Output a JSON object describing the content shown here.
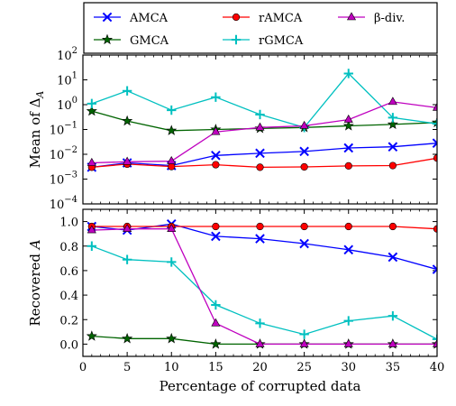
{
  "chart_data": [
    {
      "type": "line",
      "ylabel": "Mean of Δ",
      "ylabel_sub": "A",
      "yscale": "log",
      "ylim": [
        0.0001,
        100
      ],
      "yticks": [
        {
          "value": 0.0001,
          "base": "10",
          "exp": "−4"
        },
        {
          "value": 0.001,
          "base": "10",
          "exp": "−3"
        },
        {
          "value": 0.01,
          "base": "10",
          "exp": "−2"
        },
        {
          "value": 0.1,
          "base": "10",
          "exp": "−1"
        },
        {
          "value": 1,
          "base": "10",
          "exp": "0"
        },
        {
          "value": 10,
          "base": "10",
          "exp": "1"
        },
        {
          "value": 100,
          "base": "10",
          "exp": "2"
        }
      ],
      "xlim": [
        0,
        40
      ],
      "grid": false,
      "x": [
        1,
        5,
        10,
        15,
        20,
        25,
        30,
        35,
        40
      ],
      "series": [
        {
          "name": "AMCA",
          "color": "#0000ff",
          "marker": "x",
          "values": [
            0.003,
            0.0045,
            0.0035,
            0.009,
            0.011,
            0.013,
            0.018,
            0.02,
            0.028
          ]
        },
        {
          "name": "GMCA",
          "color": "#006400",
          "marker": "star",
          "values": [
            0.55,
            0.22,
            0.09,
            0.1,
            0.11,
            0.12,
            0.14,
            0.16,
            0.19
          ]
        },
        {
          "name": "rAMCA",
          "color": "#ff0000",
          "marker": "circle",
          "values": [
            0.003,
            0.004,
            0.0032,
            0.0038,
            0.003,
            0.0031,
            0.0034,
            0.0035,
            0.007
          ]
        },
        {
          "name": "rGMCA",
          "color": "#00c0c0",
          "marker": "plus",
          "values": [
            1.1,
            3.6,
            0.6,
            2.0,
            0.4,
            0.12,
            18,
            0.3,
            0.17
          ]
        },
        {
          "name": "β-div.",
          "color": "#bf00bf",
          "marker": "triangle",
          "values": [
            0.0045,
            0.005,
            0.0053,
            0.08,
            0.12,
            0.14,
            0.25,
            1.3,
            0.75
          ]
        }
      ]
    },
    {
      "type": "line",
      "ylabel": "Recovered",
      "ylabel_var": "A",
      "xlabel": "Percentage of corrupted data",
      "ylim": [
        -0.1,
        1.1
      ],
      "yticks": [
        "0.0",
        "0.2",
        "0.4",
        "0.6",
        "0.8",
        "1.0"
      ],
      "xlim": [
        0,
        40
      ],
      "xticks": [
        "0",
        "5",
        "10",
        "15",
        "20",
        "25",
        "30",
        "35",
        "40"
      ],
      "grid": false,
      "x": [
        1,
        5,
        10,
        15,
        20,
        25,
        30,
        35,
        40
      ],
      "series": [
        {
          "name": "AMCA",
          "color": "#0000ff",
          "marker": "x",
          "values": [
            0.96,
            0.93,
            0.98,
            0.88,
            0.86,
            0.82,
            0.77,
            0.71,
            0.61
          ]
        },
        {
          "name": "GMCA",
          "color": "#006400",
          "marker": "star",
          "values": [
            0.065,
            0.045,
            0.045,
            0.0,
            0.0,
            0.0,
            0.0,
            0.0,
            0.0
          ]
        },
        {
          "name": "rAMCA",
          "color": "#ff0000",
          "marker": "circle",
          "values": [
            0.96,
            0.96,
            0.96,
            0.96,
            0.96,
            0.96,
            0.96,
            0.96,
            0.94
          ]
        },
        {
          "name": "rGMCA",
          "color": "#00c0c0",
          "marker": "plus",
          "values": [
            0.8,
            0.69,
            0.67,
            0.32,
            0.17,
            0.08,
            0.19,
            0.23,
            0.04
          ]
        },
        {
          "name": "β-div.",
          "color": "#bf00bf",
          "marker": "triangle",
          "values": [
            0.93,
            0.94,
            0.94,
            0.17,
            0.0,
            0.0,
            0.0,
            0.0,
            0.0
          ]
        }
      ]
    }
  ],
  "legend": {
    "position": "top",
    "columns": 3,
    "entries": [
      {
        "name": "AMCA",
        "color": "#0000ff",
        "marker": "x"
      },
      {
        "name": "rAMCA",
        "color": "#ff0000",
        "marker": "circle"
      },
      {
        "name": "β-div.",
        "color": "#bf00bf",
        "marker": "triangle"
      },
      {
        "name": "GMCA",
        "color": "#006400",
        "marker": "star"
      },
      {
        "name": "rGMCA",
        "color": "#00c0c0",
        "marker": "plus"
      }
    ]
  }
}
